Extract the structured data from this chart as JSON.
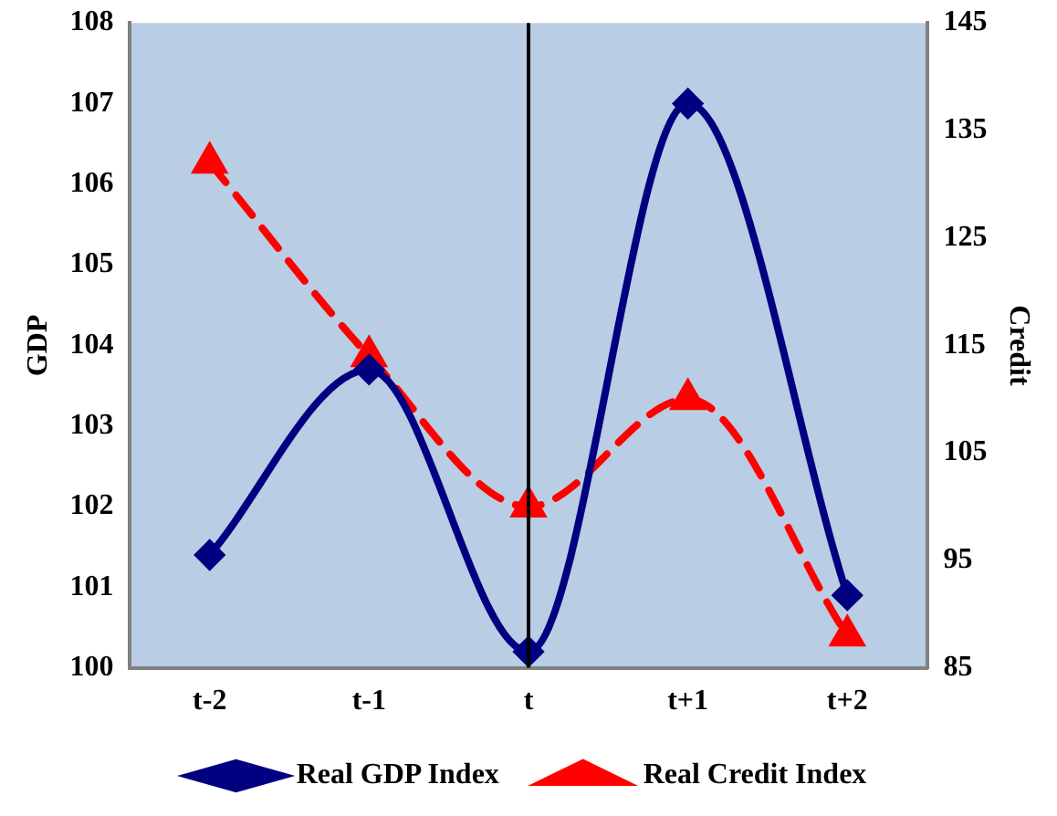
{
  "chart_data": {
    "type": "line",
    "ylabel": "GDP",
    "y2label": "Credit",
    "categories": [
      "t-2",
      "t-1",
      "t",
      "t+1",
      "t+2"
    ],
    "series": [
      {
        "name": "Real GDP Index",
        "color": "#000080",
        "values": [
          101.4,
          103.7,
          100.2,
          107.0,
          100.9
        ],
        "marker": "diamond",
        "line_style": "solid"
      },
      {
        "name": "Real Credit Index",
        "color": "#ff0000",
        "values": [
          132,
          114,
          100,
          110,
          88
        ],
        "axis": "y2",
        "marker": "triangle",
        "line_style": "dashed"
      }
    ],
    "ylim": [
      100,
      108
    ],
    "yticks": [
      100,
      101,
      102,
      103,
      104,
      105,
      106,
      107,
      108
    ],
    "y2lim": [
      85,
      145
    ],
    "y2ticks": [
      85,
      95,
      105,
      115,
      125,
      135,
      145
    ],
    "ref_lines": [
      {
        "axis": "x",
        "value": "t",
        "color": "#000000"
      }
    ],
    "grid": false,
    "legend": "bottom"
  }
}
